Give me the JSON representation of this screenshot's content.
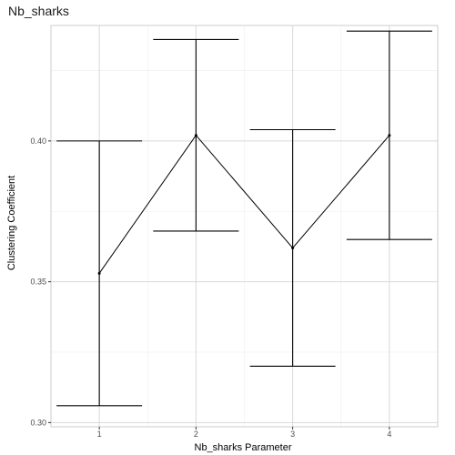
{
  "chart_data": {
    "type": "line",
    "title": "Nb_sharks",
    "xlabel": "Nb_sharks Parameter",
    "ylabel": "Clustering Coefficient",
    "x": [
      1,
      2,
      3,
      4
    ],
    "xlim": [
      0.5,
      4.5
    ],
    "ylim": [
      0.2985,
      0.441
    ],
    "yticks": [
      "0.30",
      "0.35",
      "0.40"
    ],
    "grid": true,
    "series": [
      {
        "values": [
          0.353,
          0.402,
          0.362,
          0.402
        ],
        "error_lower": [
          0.306,
          0.368,
          0.32,
          0.365
        ],
        "error_upper": [
          0.4,
          0.436,
          0.404,
          0.439
        ]
      }
    ],
    "colors": {
      "line": "#000000",
      "grid_major": "#d9d9d9",
      "grid_minor": "#eeeeee",
      "panel_border": "#cccccc"
    }
  }
}
